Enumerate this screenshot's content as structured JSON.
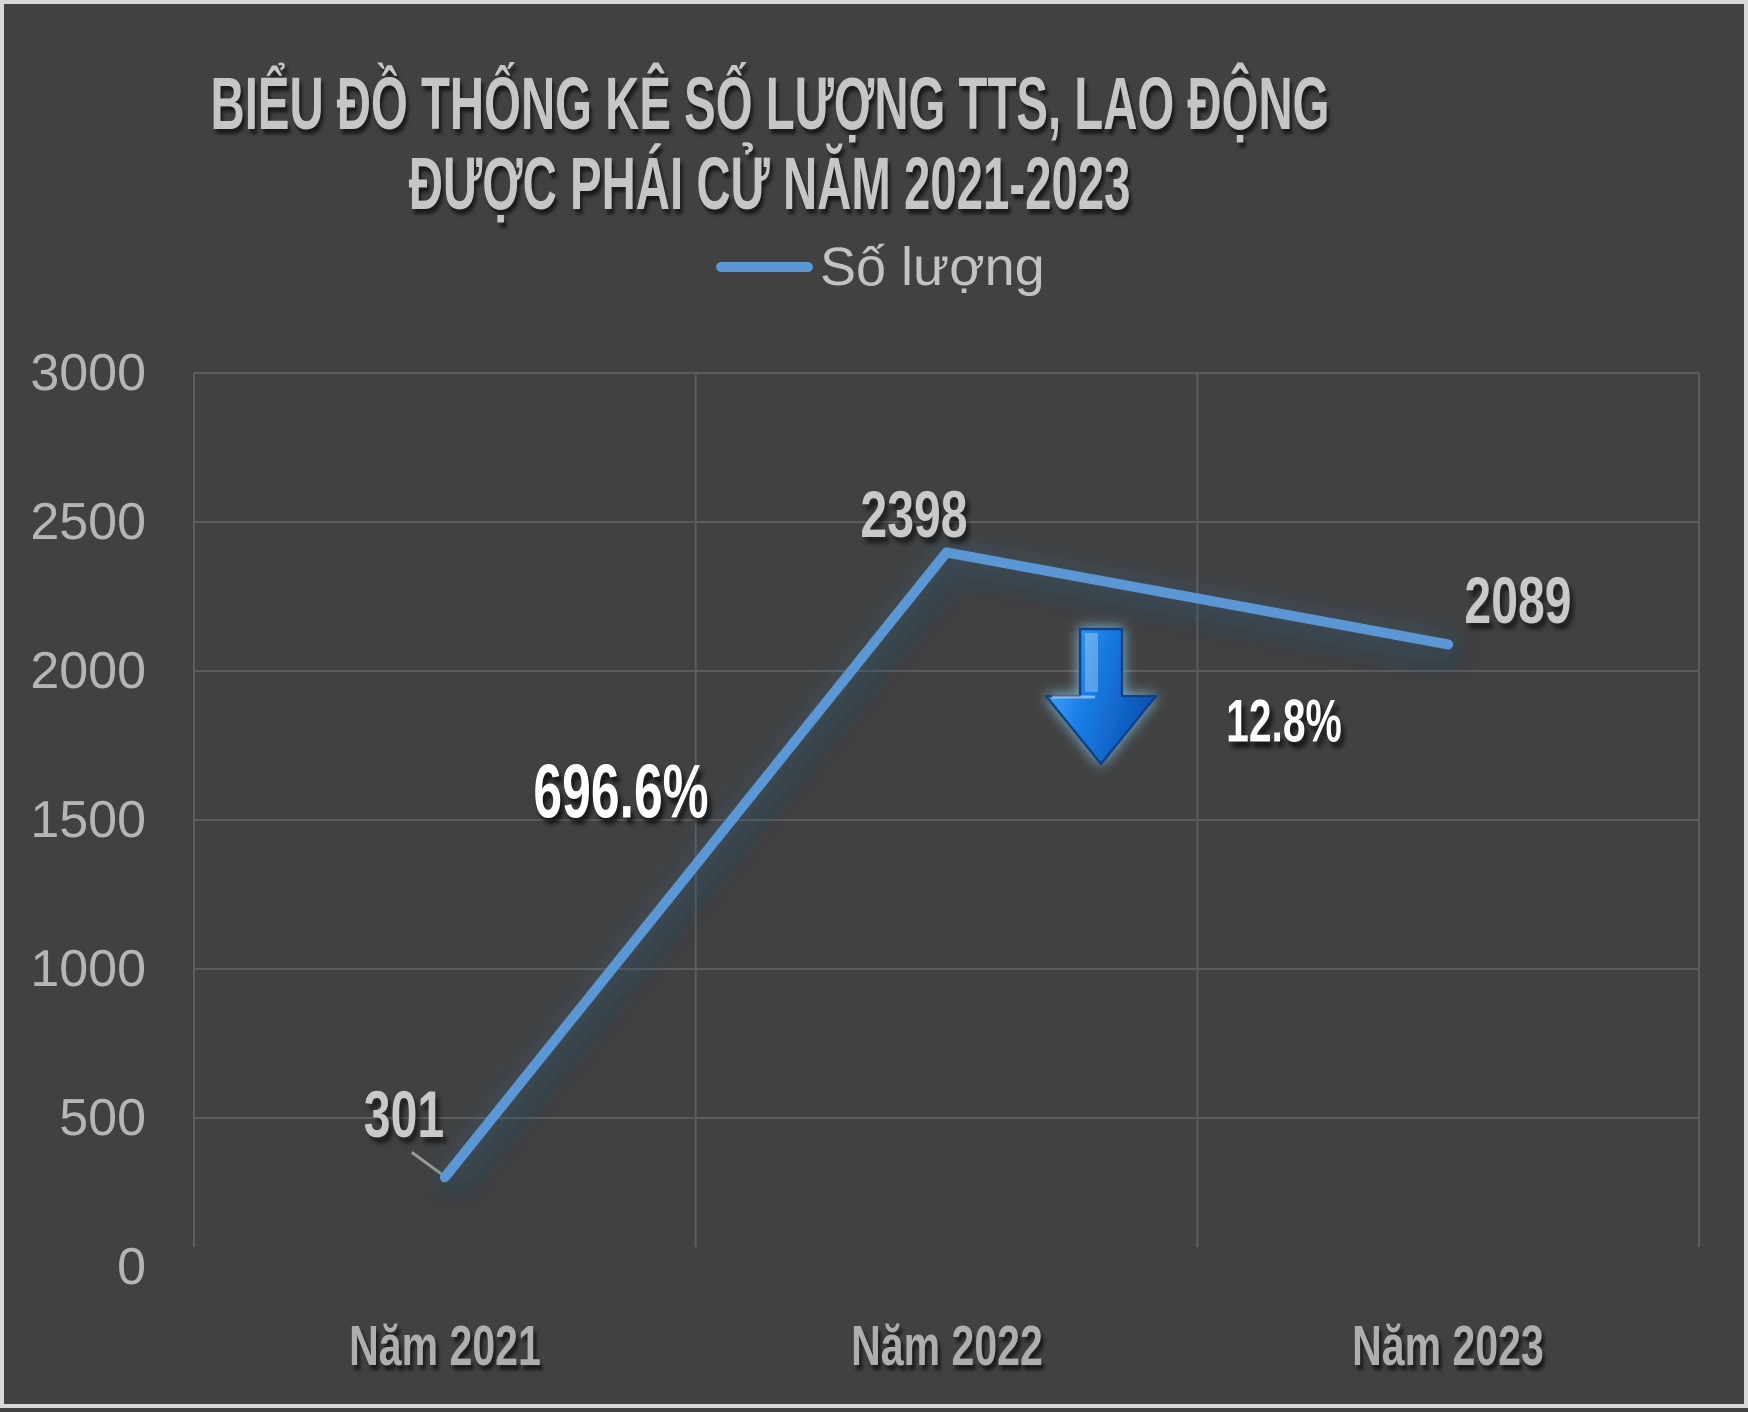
{
  "chart": {
    "title_line1": "BIỂU ĐỒ THỐNG KÊ SỐ LƯỢNG TTS, LAO ĐỘNG",
    "title_line2": "ĐƯỢC PHÁI CỬ NĂM 2021-2023",
    "legend_label": "Số lượng"
  },
  "chart_data": {
    "type": "line",
    "title": "BIỂU ĐỒ THỐNG KÊ SỐ LƯỢNG TTS, LAO ĐỘNG ĐƯỢC PHÁI CỬ NĂM 2021-2023",
    "categories": [
      "Năm 2021",
      "Năm 2022",
      "Năm 2023"
    ],
    "series": [
      {
        "name": "Số lượng",
        "values": [
          301,
          2398,
          2089
        ]
      }
    ],
    "data_labels": [
      "301",
      "2398",
      "2089"
    ],
    "y_ticks": [
      0,
      500,
      1000,
      1500,
      2000,
      2500,
      3000
    ],
    "ylim": [
      0,
      3000
    ],
    "grid": true,
    "legend_position": "top",
    "annotations": [
      {
        "text": "696.6%"
      },
      {
        "text": "12.8%",
        "icon": "down-arrow"
      }
    ],
    "colors": {
      "line": "#5b97d5",
      "background": "#414141",
      "gridline": "#5c5c5e",
      "title_text": "#c6c6c6",
      "tick_text": "#b5b5b5",
      "data_label_text": "#c9c9c9",
      "annotation_text": "#ffffff",
      "arrow_blue": "#1b80e8",
      "frame_border": "#d8d8d8"
    }
  }
}
